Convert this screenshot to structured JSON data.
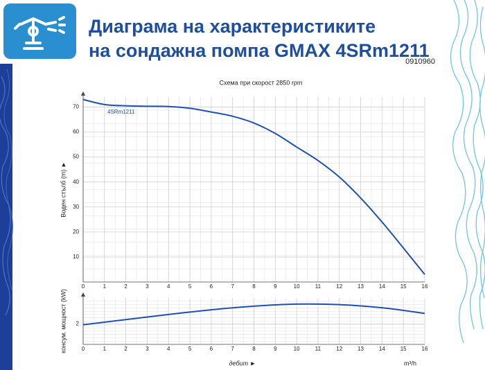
{
  "header": {
    "title_lines": [
      "Диаграма на характеристиките",
      "на сондажна помпа GMAX 4SRm1211"
    ],
    "code": "0910960"
  },
  "chart_data": [
    {
      "type": "line",
      "title": "Схема при скорост 2850 rpm",
      "y_label": "Воден стълб (m) ►",
      "x": [
        0,
        1,
        2,
        3,
        4,
        5,
        6,
        7,
        8,
        9,
        10,
        11,
        12,
        13,
        14,
        15,
        16
      ],
      "series": [
        {
          "name": "4SRm1211",
          "color": "#1f4fb0",
          "values": [
            73,
            71,
            70.5,
            70.3,
            70.2,
            69.5,
            68,
            66.3,
            63.6,
            59.4,
            54,
            48.6,
            42,
            33.6,
            24,
            13.6,
            3
          ]
        }
      ],
      "xlim": [
        0,
        16
      ],
      "xticks": [
        0,
        1,
        2,
        3,
        4,
        5,
        6,
        7,
        8,
        9,
        10,
        11,
        12,
        13,
        14,
        15,
        16
      ],
      "ylim": [
        0,
        74
      ],
      "yticks": [
        10,
        20,
        30,
        40,
        50,
        60,
        70
      ],
      "grid": true
    },
    {
      "type": "line",
      "y_label": "консум. мощност (kW)",
      "x_label": "дебит ►",
      "x_unit": "m³/h",
      "x": [
        0,
        2,
        4,
        6,
        8,
        10,
        12,
        14,
        16
      ],
      "series": [
        {
          "color": "#1f4fb0",
          "values": [
            1.98,
            2.08,
            2.18,
            2.27,
            2.34,
            2.38,
            2.37,
            2.31,
            2.2
          ]
        }
      ],
      "xlim": [
        0,
        16
      ],
      "xticks": [
        0,
        1,
        2,
        3,
        4,
        5,
        6,
        7,
        8,
        9,
        10,
        11,
        12,
        13,
        14,
        15,
        16
      ],
      "ylim": [
        1.6,
        2.5
      ],
      "yticks": [
        2
      ],
      "grid": true
    }
  ]
}
